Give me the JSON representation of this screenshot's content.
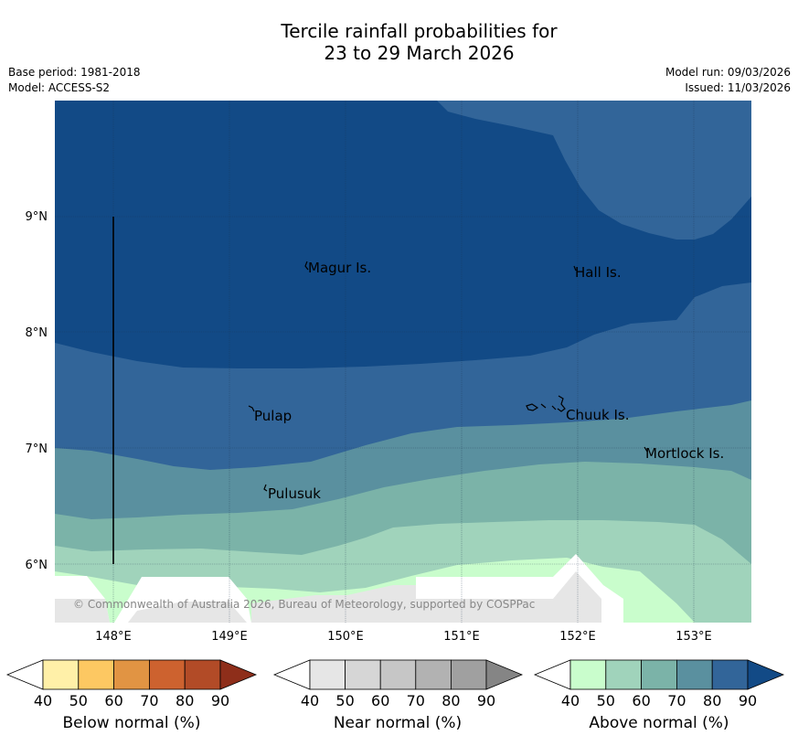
{
  "title_line1": "Tercile rainfall probabilities for",
  "title_line2": "23 to 29 March 2026",
  "base_period": "Base period: 1981-2018",
  "model": "Model: ACCESS-S2",
  "model_run": "Model run: 09/03/2026",
  "issued": "Issued: 11/03/2026",
  "copyright": "© Commonwealth of Australia 2026, Bureau of Meteorology, supported by COSPPac",
  "lat_labels": [
    "9°N",
    "8°N",
    "7°N",
    "6°N"
  ],
  "lon_labels": [
    "148°E",
    "149°E",
    "150°E",
    "151°E",
    "152°E",
    "153°E"
  ],
  "places": [
    "Magur Is.",
    "Hall Is.",
    "Pulap",
    "Chuuk Is.",
    "Mortlock Is.",
    "Pulusuk"
  ],
  "colorbars": [
    {
      "label": "Below normal (%)",
      "ticks": [
        "40",
        "50",
        "60",
        "70",
        "80",
        "90"
      ],
      "colors": [
        "#fff0a8",
        "#fdc862",
        "#e19443",
        "#cd622f",
        "#b24b27",
        "#8e2e1a"
      ]
    },
    {
      "label": "Near normal (%)",
      "ticks": [
        "40",
        "50",
        "60",
        "70",
        "80",
        "90"
      ],
      "colors": [
        "#e6e6e6",
        "#d6d6d6",
        "#c6c6c6",
        "#b2b2b2",
        "#a0a0a0",
        "#858585"
      ]
    },
    {
      "label": "Above normal (%)",
      "ticks": [
        "40",
        "50",
        "60",
        "70",
        "80",
        "90"
      ],
      "colors": [
        "#c9fdcc",
        "#a0d3bb",
        "#7bb3a8",
        "#5a909f",
        "#326599",
        "#124a86"
      ]
    }
  ]
}
